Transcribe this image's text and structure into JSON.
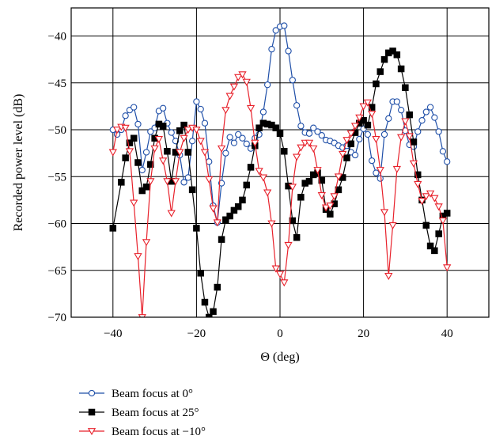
{
  "chart_data": {
    "type": "line",
    "xlabel": "Θ (deg)",
    "ylabel": "Recorded power level (dB)",
    "xlim": [
      -50,
      50
    ],
    "ylim": [
      -70,
      -37
    ],
    "xticks": [
      -40,
      -20,
      0,
      20,
      40
    ],
    "yticks": [
      -70,
      -65,
      -60,
      -55,
      -50,
      -45,
      -40
    ],
    "xtick_labels": [
      "−40",
      "−20",
      "0",
      "20",
      "40"
    ],
    "ytick_labels": [
      "−70",
      "−65",
      "−60",
      "−55",
      "−50",
      "−45",
      "−40"
    ],
    "grid": true,
    "legend_position": "below",
    "series": [
      {
        "name": "Beam focus at 0°",
        "color": "#1f4fa8",
        "marker": "circle-open",
        "x": [
          -40,
          -39,
          -38,
          -37,
          -36,
          -35,
          -34,
          -33,
          -32,
          -31,
          -30,
          -29,
          -28,
          -27,
          -26,
          -25,
          -24,
          -23,
          -22,
          -21,
          -20,
          -19,
          -18,
          -17,
          -16,
          -15,
          -14,
          -13,
          -12,
          -11,
          -10,
          -9,
          -8,
          -7,
          -6,
          -5,
          -4,
          -3,
          -2,
          -1,
          0,
          1,
          2,
          3,
          4,
          5,
          6,
          7,
          8,
          9,
          10,
          11,
          12,
          13,
          14,
          15,
          16,
          17,
          18,
          19,
          20,
          21,
          22,
          23,
          24,
          25,
          26,
          27,
          28,
          29,
          30,
          31,
          32,
          33,
          34,
          35,
          36,
          37,
          38,
          39,
          40
        ],
        "y": [
          -50.0,
          -50.5,
          -50.0,
          -48.5,
          -47.9,
          -47.6,
          -49.4,
          -54.3,
          -52.4,
          -50.2,
          -49.8,
          -48.0,
          -47.7,
          -49.3,
          -50.3,
          -51.2,
          -52.7,
          -55.6,
          -55.1,
          -51.2,
          -47.0,
          -47.8,
          -49.3,
          -53.4,
          -58.1,
          -59.9,
          -55.7,
          -52.5,
          -50.8,
          -51.4,
          -50.5,
          -50.9,
          -51.5,
          -52.0,
          -50.9,
          -50.5,
          -48.1,
          -45.2,
          -41.4,
          -39.4,
          -39.0,
          -38.9,
          -41.6,
          -44.7,
          -47.4,
          -49.6,
          -50.3,
          -50.4,
          -49.8,
          -50.2,
          -50.6,
          -51.1,
          -51.2,
          -51.4,
          -51.7,
          -51.9,
          -51.7,
          -52.4,
          -52.7,
          -51.0,
          -49.9,
          -50.5,
          -53.3,
          -54.6,
          -55.2,
          -50.5,
          -48.8,
          -47.0,
          -47.0,
          -47.9,
          -50.1,
          -51.6,
          -51.8,
          -50.2,
          -49.0,
          -48.1,
          -47.6,
          -48.7,
          -50.2,
          -52.3,
          -53.4
        ]
      },
      {
        "name": "Beam focus at 25°",
        "color": "#000000",
        "marker": "square-filled",
        "x": [
          -40,
          -38,
          -37,
          -36,
          -35,
          -34,
          -33,
          -32,
          -31,
          -30,
          -29,
          -28,
          -27,
          -26,
          -25,
          -24,
          -23,
          -22,
          -21,
          -20,
          -19,
          -18,
          -17,
          -16,
          -15,
          -14,
          -13,
          -12,
          -11,
          -10,
          -9,
          -8,
          -7,
          -6,
          -5,
          -4,
          -3,
          -2,
          -1,
          0,
          1,
          2,
          3,
          4,
          5,
          6,
          7,
          8,
          9,
          10,
          11,
          12,
          13,
          14,
          15,
          16,
          17,
          18,
          19,
          20,
          21,
          22,
          23,
          24,
          25,
          26,
          27,
          28,
          29,
          30,
          31,
          32,
          33,
          34,
          35,
          36,
          37,
          38,
          39,
          40
        ],
        "y": [
          -60.5,
          -55.6,
          -53.0,
          -51.4,
          -50.9,
          -53.5,
          -56.5,
          -56.1,
          -53.7,
          -50.9,
          -49.4,
          -49.6,
          -52.3,
          -55.5,
          -52.4,
          -50.1,
          -49.5,
          -52.4,
          -56.4,
          -60.5,
          -65.3,
          -68.4,
          -70.0,
          -69.4,
          -66.8,
          -61.7,
          -59.6,
          -59.2,
          -58.6,
          -58.2,
          -57.5,
          -55.9,
          -54.0,
          -51.7,
          -49.8,
          -49.3,
          -49.4,
          -49.5,
          -49.8,
          -50.4,
          -52.3,
          -56.0,
          -59.7,
          -61.5,
          -57.2,
          -55.7,
          -55.5,
          -54.8,
          -54.6,
          -55.4,
          -58.5,
          -59.0,
          -57.9,
          -56.4,
          -55.1,
          -53.0,
          -51.5,
          -50.3,
          -49.3,
          -49.0,
          -49.5,
          -47.6,
          -45.1,
          -43.8,
          -42.5,
          -41.8,
          -41.6,
          -42.0,
          -43.5,
          -45.5,
          -48.4,
          -51.3,
          -54.8,
          -57.5,
          -60.2,
          -62.4,
          -62.9,
          -61.1,
          -59.2,
          -58.9
        ]
      },
      {
        "name": "Beam focus at −10°",
        "color": "#e8212b",
        "marker": "triangle-down-open",
        "x": [
          -40,
          -39,
          -38,
          -37,
          -36,
          -35,
          -34,
          -33,
          -32,
          -31,
          -30,
          -29,
          -28,
          -27,
          -26,
          -25,
          -24,
          -23,
          -22,
          -21,
          -20,
          -19,
          -18,
          -17,
          -16,
          -15,
          -14,
          -13,
          -12,
          -11,
          -10,
          -9,
          -8,
          -7,
          -6,
          -5,
          -4,
          -3,
          -2,
          -1,
          0,
          1,
          2,
          3,
          4,
          5,
          6,
          7,
          8,
          9,
          10,
          11,
          12,
          13,
          14,
          15,
          16,
          17,
          18,
          19,
          20,
          21,
          22,
          23,
          24,
          25,
          26,
          27,
          28,
          29,
          30,
          31,
          32,
          33,
          34,
          35,
          36,
          37,
          38,
          39,
          40
        ],
        "y": [
          -52.4,
          -50.0,
          -49.7,
          -49.8,
          -52.3,
          -57.8,
          -63.5,
          -70.0,
          -62.0,
          -55.5,
          -52.0,
          -51.0,
          -53.3,
          -55.5,
          -58.9,
          -55.5,
          -52.4,
          -50.9,
          -50.0,
          -49.8,
          -50.0,
          -51.2,
          -52.4,
          -55.3,
          -58.4,
          -59.9,
          -52.0,
          -47.9,
          -46.4,
          -45.4,
          -44.4,
          -44.1,
          -44.9,
          -47.7,
          -51.4,
          -54.4,
          -55.1,
          -56.7,
          -60.0,
          -64.8,
          -65.4,
          -66.3,
          -62.3,
          -56.1,
          -52.9,
          -51.9,
          -51.4,
          -51.4,
          -52.0,
          -54.3,
          -57.0,
          -58.3,
          -58.1,
          -57.1,
          -55.0,
          -52.6,
          -51.1,
          -50.4,
          -49.6,
          -48.7,
          -47.5,
          -47.1,
          -48.3,
          -51.0,
          -54.3,
          -58.8,
          -65.6,
          -60.2,
          -54.2,
          -50.8,
          -49.1,
          -50.7,
          -53.6,
          -55.8,
          -57.6,
          -57.1,
          -56.8,
          -57.3,
          -58.2,
          -59.7,
          -64.7
        ]
      }
    ]
  }
}
